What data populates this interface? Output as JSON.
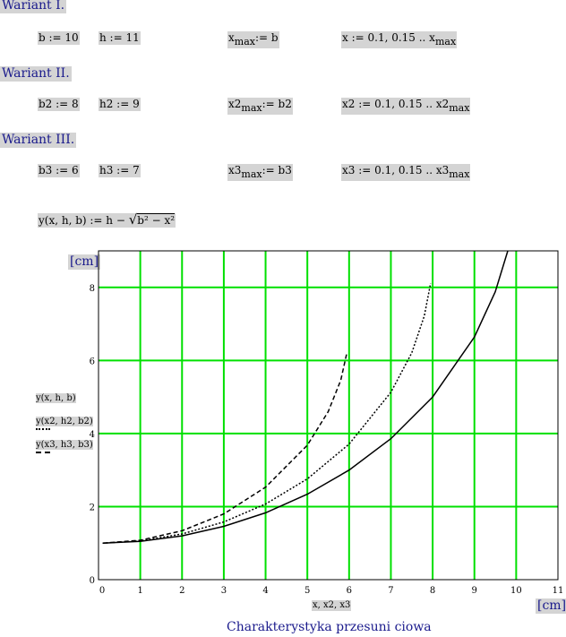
{
  "variants": [
    {
      "heading": "Wariant I.",
      "b_def": "b := 10",
      "h_def": "h := 11",
      "xmax_def": {
        "lhs": "x",
        "sub": "max",
        "rhs": ":= b"
      },
      "range_def": {
        "lhs": "x := 0.1, 0.15 .. x",
        "sub": "max"
      }
    },
    {
      "heading": "Wariant II.",
      "b_def": "b2 := 8",
      "h_def": "h2 := 9",
      "xmax_def": {
        "lhs": "x2",
        "sub": "max",
        "rhs": ":= b2"
      },
      "range_def": {
        "lhs": "x2 := 0.1, 0.15 .. x2",
        "sub": "max"
      }
    },
    {
      "heading": "Wariant III.",
      "b_def": "b3 := 6",
      "h_def": "h3 := 7",
      "xmax_def": {
        "lhs": "x3",
        "sub": "max",
        "rhs": ":= b3"
      },
      "range_def": {
        "lhs": "x3 := 0.1, 0.15 .. x3",
        "sub": "max"
      }
    }
  ],
  "function_def": {
    "lhs": "y(x, h, b) := h − ",
    "radicand": "b² − x²"
  },
  "plot": {
    "y_unit": "[cm]",
    "x_unit": "[cm]",
    "x_axis_label": "x, x2, x3",
    "caption": "Charakterystyka przesuni  ciowa",
    "legend": [
      {
        "label": "y(x, h, b)",
        "style": "solid"
      },
      {
        "label": "y(x2, h2, b2)",
        "style": "dotted"
      },
      {
        "label": "y(x3, h3, b3)",
        "style": "dashed"
      }
    ],
    "grid_color": "#00e000"
  },
  "chart_data": {
    "type": "line",
    "xlim": [
      0,
      11
    ],
    "ylim": [
      0,
      9
    ],
    "x_ticks": [
      "0",
      "1",
      "2",
      "3",
      "4",
      "5",
      "6",
      "7",
      "8",
      "9",
      "10",
      "11"
    ],
    "y_ticks": [
      "0",
      "2",
      "4",
      "6",
      "8"
    ],
    "grid": true,
    "series": [
      {
        "name": "y(x, h, b)",
        "style": "solid",
        "x": [
          0.1,
          1,
          2,
          3,
          4,
          5,
          6,
          7,
          8,
          9,
          9.5,
          9.8
        ],
        "y": [
          1.0,
          1.05,
          1.2,
          1.46,
          1.83,
          2.34,
          3.0,
          3.86,
          5.0,
          6.64,
          7.88,
          9.0
        ]
      },
      {
        "name": "y(x2, h2, b2)",
        "style": "dotted",
        "x": [
          0.1,
          1,
          2,
          3,
          4,
          5,
          6,
          7,
          7.5,
          7.8,
          7.95
        ],
        "y": [
          1.0,
          1.06,
          1.25,
          1.58,
          2.07,
          2.76,
          3.71,
          5.13,
          6.21,
          7.22,
          8.11
        ]
      },
      {
        "name": "y(x3, h3, b3)",
        "style": "dashed",
        "x": [
          0.1,
          1,
          2,
          3,
          4,
          5,
          5.5,
          5.8,
          5.95
        ],
        "y": [
          1.0,
          1.08,
          1.34,
          1.8,
          2.53,
          3.68,
          4.6,
          5.46,
          6.23
        ]
      }
    ]
  }
}
